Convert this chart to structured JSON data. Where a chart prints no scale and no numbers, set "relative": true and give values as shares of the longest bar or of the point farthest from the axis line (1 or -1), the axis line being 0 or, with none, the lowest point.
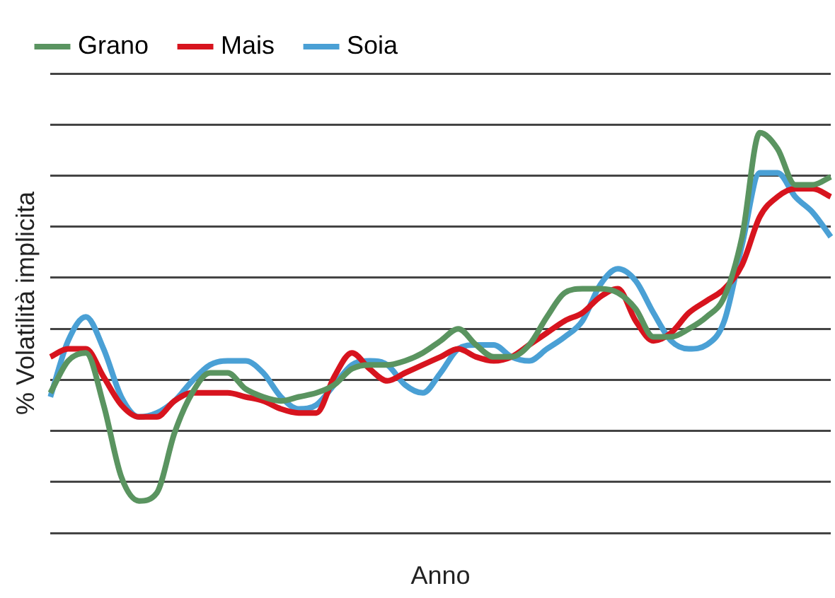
{
  "chart_data": {
    "type": "line",
    "relative": true,
    "xlabel": "Anno",
    "ylabel": "% Volatilità implicita",
    "legend": "top left",
    "grid": "y",
    "marker": "none",
    "line_style": "solid",
    "categories": [
      null,
      null,
      null,
      null,
      null,
      null,
      null,
      null,
      null,
      null,
      null,
      null,
      null,
      null,
      null,
      null,
      null,
      null,
      null,
      null,
      null,
      null,
      null,
      null,
      null,
      null,
      null,
      null,
      null,
      null,
      null,
      null,
      null,
      null,
      null,
      null,
      null,
      null,
      null,
      null,
      null,
      null,
      null,
      null,
      null
    ],
    "series": [
      {
        "name": "Grano",
        "color": "#5a9460",
        "values": [
          0.35,
          0.43,
          0.45,
          0.32,
          0.14,
          0.08,
          0.1,
          0.25,
          0.35,
          0.4,
          0.4,
          0.36,
          0.34,
          0.33,
          0.34,
          0.35,
          0.37,
          0.41,
          0.42,
          0.42,
          0.43,
          0.45,
          0.48,
          0.51,
          0.47,
          0.44,
          0.44,
          0.47,
          0.54,
          0.6,
          0.61,
          0.61,
          0.6,
          0.56,
          0.49,
          0.49,
          0.51,
          0.54,
          0.59,
          0.74,
          1,
          0.96,
          0.87,
          0.87,
          0.89
        ]
      },
      {
        "name": "Mais",
        "color": "#d7141e",
        "values": [
          0.44,
          0.46,
          0.46,
          0.39,
          0.32,
          0.29,
          0.29,
          0.33,
          0.35,
          0.35,
          0.35,
          0.34,
          0.33,
          0.31,
          0.3,
          0.3,
          0.39,
          0.45,
          0.41,
          0.38,
          0.4,
          0.42,
          0.44,
          0.46,
          0.44,
          0.43,
          0.44,
          0.47,
          0.5,
          0.53,
          0.55,
          0.59,
          0.61,
          0.53,
          0.48,
          0.5,
          0.55,
          0.58,
          0.61,
          0.67,
          0.79,
          0.84,
          0.86,
          0.86,
          0.84
        ]
      },
      {
        "name": "Soia",
        "color": "#4aa0d5",
        "values": [
          0.34,
          0.48,
          0.54,
          0.46,
          0.34,
          0.29,
          0.3,
          0.33,
          0.38,
          0.42,
          0.43,
          0.43,
          0.4,
          0.34,
          0.31,
          0.32,
          0.37,
          0.42,
          0.43,
          0.42,
          0.37,
          0.35,
          0.4,
          0.46,
          0.47,
          0.47,
          0.44,
          0.43,
          0.46,
          0.49,
          0.53,
          0.62,
          0.66,
          0.63,
          0.55,
          0.48,
          0.46,
          0.47,
          0.53,
          0.72,
          0.9,
          0.9,
          0.84,
          0.8,
          0.74
        ]
      }
    ]
  }
}
